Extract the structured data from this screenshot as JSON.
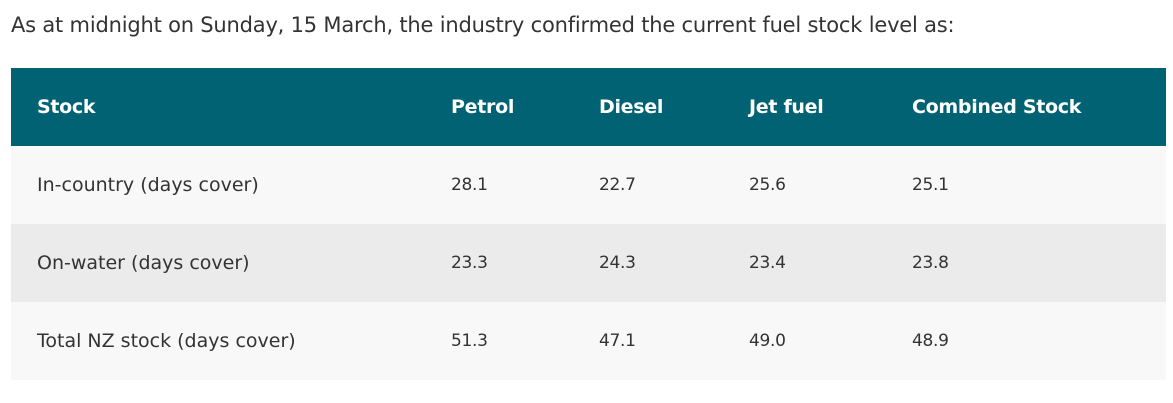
{
  "intro": "As at midnight on Sunday, 15 March, the industry confirmed the current fuel stock level as:",
  "table": {
    "headers": [
      "Stock",
      "Petrol",
      "Diesel",
      "Jet fuel",
      "Combined Stock"
    ],
    "rows": [
      [
        "In-country (days cover)",
        "28.1",
        "22.7",
        "25.6",
        "25.1"
      ],
      [
        "On-water (days cover)",
        "23.3",
        "24.3",
        "23.4",
        "23.8"
      ],
      [
        "Total NZ stock (days cover)",
        "51.3",
        "47.1",
        "49.0",
        "48.9"
      ]
    ]
  },
  "colors": {
    "header_bg": "#006272",
    "header_text": "#ffffff",
    "row_light": "#f8f8f8",
    "row_dark": "#ebebeb",
    "body_text": "#333333"
  }
}
